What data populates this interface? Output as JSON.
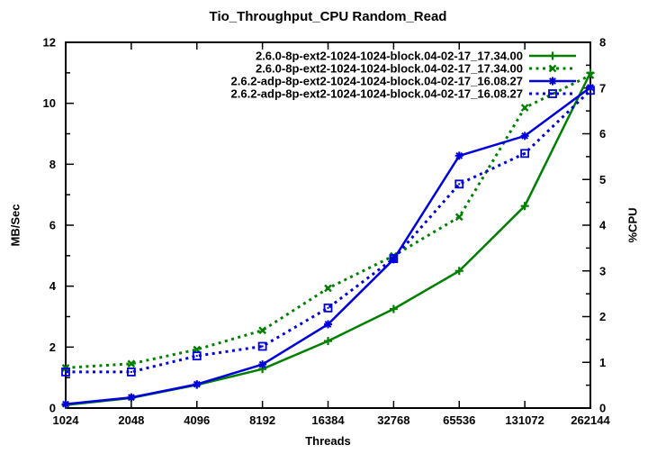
{
  "title": "Tio_Throughput_CPU Random_Read",
  "colors": {
    "green": "#008000",
    "blue": "#0000dd",
    "axis": "#000000",
    "background": "#ffffff"
  },
  "chart_data": {
    "type": "line",
    "title": "Tio_Throughput_CPU Random_Read",
    "xlabel": "Threads",
    "ylabel_left": "MB/Sec",
    "ylabel_right": "%CPU",
    "x_scale": "log2",
    "grid": false,
    "legend_position": "top-right-inside",
    "categories": [
      "1024",
      "2048",
      "4096",
      "8192",
      "16384",
      "32768",
      "65536",
      "131072",
      "262144"
    ],
    "y_left_axis": {
      "min": 0,
      "max": 12,
      "tick_step": 2,
      "minor_step": 1,
      "tick_labels": [
        "0",
        "2",
        "4",
        "6",
        "8",
        "10",
        "12"
      ]
    },
    "y_right_axis": {
      "min": 0,
      "max": 8,
      "tick_step": 1,
      "minor_step": 0.5,
      "tick_labels": [
        "0",
        "1",
        "2",
        "3",
        "4",
        "5",
        "6",
        "7",
        "8"
      ]
    },
    "series": [
      {
        "name": "2.6.0-8p-ext2-1024-1024-block.04-02-17_17.34.00",
        "axis": "left",
        "unit": "MB/Sec",
        "color": "#008000",
        "line": "solid",
        "marker": "plus",
        "values": [
          0.1,
          0.33,
          0.76,
          1.28,
          2.2,
          3.25,
          4.5,
          6.63,
          11.0
        ]
      },
      {
        "name": "2.6.0-8p-ext2-1024-1024-block.04-02-17_17.34.00",
        "axis": "right",
        "unit": "%CPU",
        "color": "#008000",
        "line": "dotted",
        "marker": "x",
        "values": [
          0.88,
          0.97,
          1.28,
          1.7,
          2.62,
          3.33,
          4.18,
          6.57,
          7.28
        ]
      },
      {
        "name": "2.6.2-adp-8p-ext2-1024-1024-block.04-02-17_16.08.27",
        "axis": "left",
        "unit": "MB/Sec",
        "color": "#0000dd",
        "line": "solid",
        "marker": "star",
        "values": [
          0.13,
          0.35,
          0.78,
          1.43,
          2.75,
          4.88,
          8.28,
          8.93,
          10.52
        ]
      },
      {
        "name": "2.6.2-adp-8p-ext2-1024-1024-block.04-02-17_16.08.27",
        "axis": "right",
        "unit": "%CPU",
        "color": "#0000dd",
        "line": "dotted",
        "marker": "square-open",
        "values": [
          0.79,
          0.79,
          1.14,
          1.35,
          2.19,
          3.27,
          4.9,
          5.57,
          6.95
        ]
      }
    ]
  }
}
